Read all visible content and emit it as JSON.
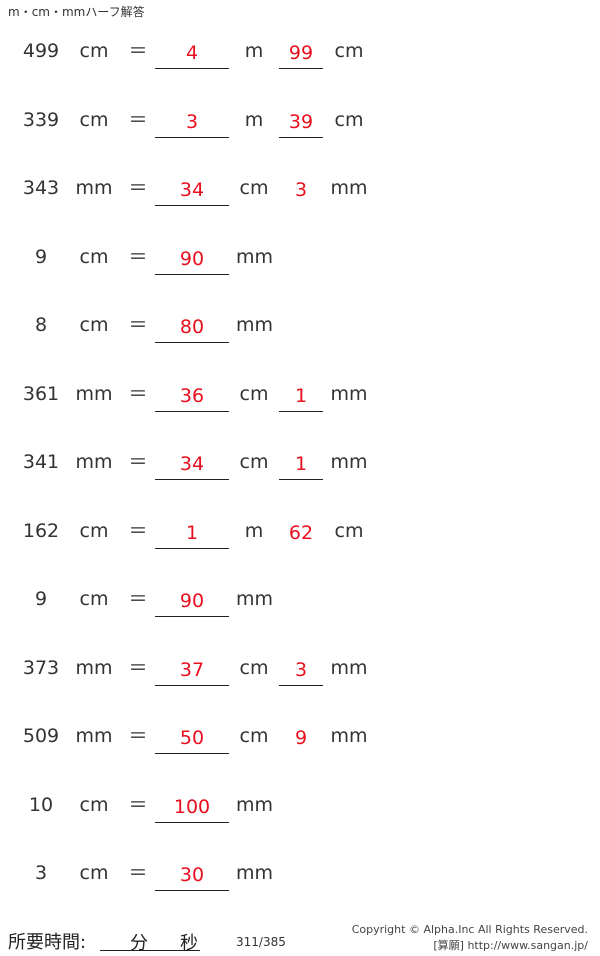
{
  "title": "m・cm・mmハーフ解答",
  "rows": [
    {
      "q": "499",
      "u1": "cm",
      "eq": "＝",
      "a1": "4",
      "u2": "m",
      "a2": "99",
      "a2_underlined": true,
      "u3": "cm"
    },
    {
      "q": "339",
      "u1": "cm",
      "eq": "＝",
      "a1": "3",
      "u2": "m",
      "a2": "39",
      "a2_underlined": true,
      "u3": "cm"
    },
    {
      "q": "343",
      "u1": "mm",
      "eq": "＝",
      "a1": "34",
      "u2": "cm",
      "a2": "3",
      "a2_underlined": false,
      "u3": "mm"
    },
    {
      "q": "9",
      "u1": "cm",
      "eq": "＝",
      "a1": "90",
      "u2": "mm"
    },
    {
      "q": "8",
      "u1": "cm",
      "eq": "＝",
      "a1": "80",
      "u2": "mm"
    },
    {
      "q": "361",
      "u1": "mm",
      "eq": "＝",
      "a1": "36",
      "u2": "cm",
      "a2": "1",
      "a2_underlined": true,
      "u3": "mm"
    },
    {
      "q": "341",
      "u1": "mm",
      "eq": "＝",
      "a1": "34",
      "u2": "cm",
      "a2": "1",
      "a2_underlined": true,
      "u3": "mm"
    },
    {
      "q": "162",
      "u1": "cm",
      "eq": "＝",
      "a1": "1",
      "u2": "m",
      "a2": "62",
      "a2_underlined": false,
      "u3": "cm"
    },
    {
      "q": "9",
      "u1": "cm",
      "eq": "＝",
      "a1": "90",
      "u2": "mm"
    },
    {
      "q": "373",
      "u1": "mm",
      "eq": "＝",
      "a1": "37",
      "u2": "cm",
      "a2": "3",
      "a2_underlined": true,
      "u3": "mm"
    },
    {
      "q": "509",
      "u1": "mm",
      "eq": "＝",
      "a1": "50",
      "u2": "cm",
      "a2": "9",
      "a2_underlined": false,
      "u3": "mm"
    },
    {
      "q": "10",
      "u1": "cm",
      "eq": "＝",
      "a1": "100",
      "u2": "mm"
    },
    {
      "q": "3",
      "u1": "cm",
      "eq": "＝",
      "a1": "30",
      "u2": "mm"
    }
  ],
  "footer": {
    "time_label": "所要時間:",
    "minutes": "分",
    "seconds": "秒",
    "page": "311/385",
    "copyright": "Copyright © Alpha.Inc All Rights Reserved.",
    "site": "[算願] http://www.sangan.jp/"
  },
  "colors": {
    "answer": "#e8101e",
    "text": "#333333"
  }
}
